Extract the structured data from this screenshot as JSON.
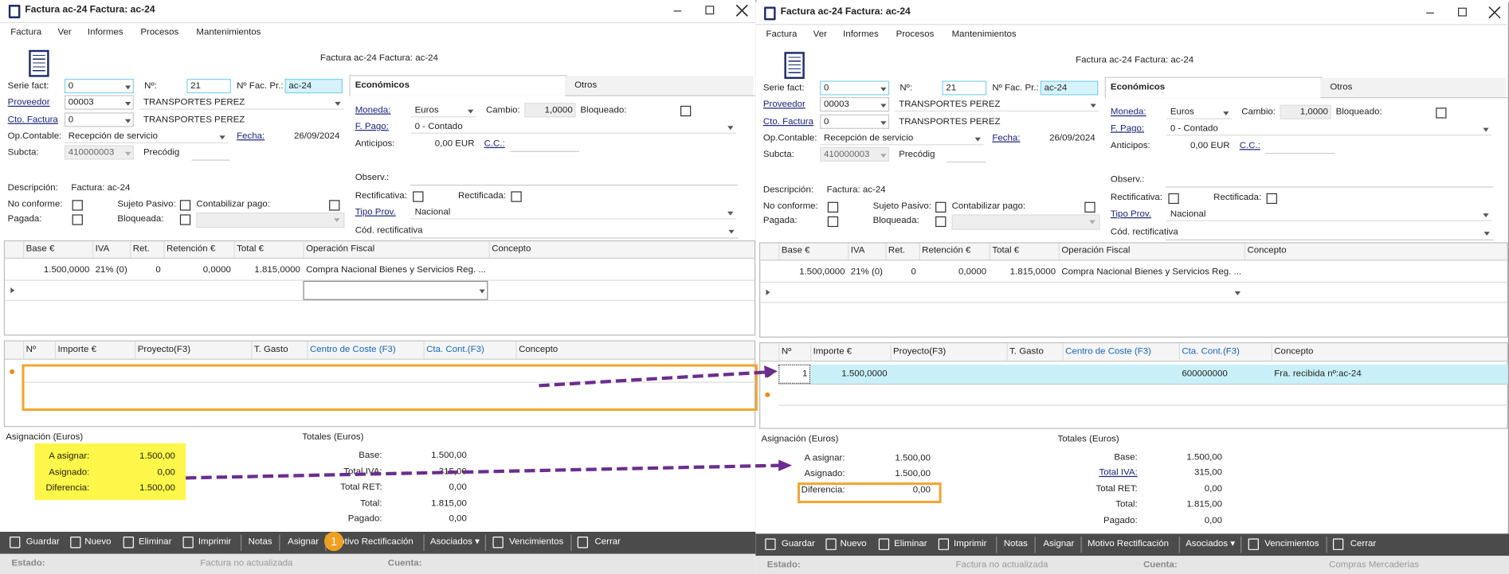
{
  "windows": [
    {
      "title": "Factura ac-24  Factura: ac-24",
      "menu": [
        "Factura",
        "Ver",
        "Informes",
        "Procesos",
        "Mantenimientos"
      ],
      "caption": "Factura ac-24  Factura: ac-24",
      "tabs": [
        "Económicos",
        "Otros"
      ],
      "labels": [
        "Serie fact:",
        "Nº:",
        "Nº Fac. Pr.:",
        "Proveedor",
        "Cto. Factura",
        "Op.Contable:",
        "Fecha:",
        "Subcta:",
        "Precódig",
        "Descripción:",
        "No conforme:",
        "Sujeto Pasivo:",
        "Contabilizar pago:",
        "Pagada:",
        "Bloqueada:",
        "Moneda:",
        "Cambio:",
        "Bloqueado:",
        "F. Pago:",
        "Anticipos:",
        "C.C.:",
        "Observ.:",
        "Rectificativa:",
        "Rectificada:",
        "Tipo Prov.",
        "Cód. rectificativa"
      ],
      "inputs": [
        "0",
        "21",
        "ac-24",
        "00003",
        "TRANSPORTES PEREZ",
        "0",
        "TRANSPORTES PEREZ",
        "Recepción de servicio",
        "26/09/2024",
        "410000003",
        "Factura: ac-24",
        "Euros",
        "1,0000",
        "0 - Contado",
        "0,00 EUR",
        "Nacional"
      ],
      "grid1": {
        "headers": [
          "Base €",
          "IVA",
          "Ret.",
          "Retención €",
          "Total €",
          "Operación Fiscal",
          "Concepto"
        ],
        "rows": [
          [
            "1.500,0000",
            "21% (0)",
            "0",
            "0,0000",
            "1.815,0000",
            "Compra Nacional Bienes y Servicios Reg. ...",
            null
          ]
        ]
      },
      "grid2": {
        "headers": [
          "Nº",
          "Importe €",
          "Proyecto(F3)",
          "T. Gasto",
          "Centro de Coste (F3)",
          "Cta. Cont.(F3)",
          "Concepto"
        ],
        "rows": []
      },
      "assignment": {
        "title": "Asignación (Euros)",
        "rows": [
          {
            "label": "A asignar:",
            "value": "1.500,00"
          },
          {
            "label": "Asignado:",
            "value": "0,00"
          },
          {
            "label": "Diferencia:",
            "value": "1.500,00"
          }
        ]
      },
      "totals": {
        "title": "Totales (Euros)",
        "rows": [
          {
            "label": "Base:",
            "value": "1.500,00"
          },
          {
            "label": "Total IVA:",
            "value": "315,00"
          },
          {
            "label": "Total RET:",
            "value": "0,00"
          },
          {
            "label": "Total:",
            "value": "1.815,00"
          },
          {
            "label": "Pagado:",
            "value": "0,00"
          }
        ]
      },
      "toolbar": [
        "Guardar",
        "Nuevo",
        "Eliminar",
        "Imprimir",
        "Notas",
        "Asignar",
        "Motivo Rectificación",
        "Asociados ▾",
        "Vencimientos",
        "Cerrar"
      ],
      "status": [
        {
          "label": "Estado:",
          "value": "Factura no actualizada"
        },
        {
          "label": "Cuenta:",
          "value": null
        }
      ]
    },
    {
      "title": "Factura ac-24  Factura: ac-24",
      "menu": [
        "Factura",
        "Ver",
        "Informes",
        "Procesos",
        "Mantenimientos"
      ],
      "caption": "Factura ac-24  Factura: ac-24",
      "tabs": [
        "Económicos",
        "Otros"
      ],
      "labels": [
        "Serie fact:",
        "Nº:",
        "Nº Fac. Pr.:",
        "Proveedor",
        "Cto. Factura",
        "Op.Contable:",
        "Fecha:",
        "Subcta:",
        "Precódig",
        "Descripción:",
        "No conforme:",
        "Sujeto Pasivo:",
        "Contabilizar pago:",
        "Pagada:",
        "Bloqueada:",
        "Moneda:",
        "Cambio:",
        "Bloqueado:",
        "F. Pago:",
        "Anticipos:",
        "C.C.:",
        "Observ.:",
        "Rectificativa:",
        "Rectificada:",
        "Tipo Prov.",
        "Cód. rectificativa"
      ],
      "inputs": [
        "0",
        "21",
        "ac-24",
        "00003",
        "TRANSPORTES PEREZ",
        "0",
        "TRANSPORTES PEREZ",
        "Recepción de servicio",
        "26/09/2024",
        "410000003",
        "Factura: ac-24",
        "Euros",
        "1,0000",
        "0 - Contado",
        "0,00 EUR",
        "Nacional"
      ],
      "grid1": {
        "headers": [
          "Base €",
          "IVA",
          "Ret.",
          "Retención €",
          "Total €",
          "Operación Fiscal",
          "Concepto"
        ],
        "rows": [
          [
            "1.500,0000",
            "21% (0)",
            "0",
            "0,0000",
            "1.815,0000",
            "Compra Nacional Bienes y Servicios Reg. ...",
            null
          ]
        ]
      },
      "grid2": {
        "headers": [
          "Nº",
          "Importe €",
          "Proyecto(F3)",
          "T. Gasto",
          "Centro de Coste (F3)",
          "Cta. Cont.(F3)",
          "Concepto"
        ],
        "rows": [
          [
            "1",
            "1.500,0000",
            null,
            null,
            null,
            "600000000",
            "Fra. recibida nº:ac-24"
          ]
        ]
      },
      "assignment": {
        "title": "Asignación (Euros)",
        "rows": [
          {
            "label": "A asignar:",
            "value": "1.500,00"
          },
          {
            "label": "Asignado:",
            "value": "1.500,00"
          },
          {
            "label": "Diferencia:",
            "value": "0,00"
          }
        ]
      },
      "totals": {
        "title": "Totales (Euros)",
        "rows": [
          {
            "label": "Base:",
            "value": "1.500,00"
          },
          {
            "label": "Total IVA:",
            "value": "315,00"
          },
          {
            "label": "Total RET:",
            "value": "0,00"
          },
          {
            "label": "Total:",
            "value": "1.815,00"
          },
          {
            "label": "Pagado:",
            "value": "0,00"
          }
        ]
      },
      "toolbar": [
        "Guardar",
        "Nuevo",
        "Eliminar",
        "Imprimir",
        "Notas",
        "Asignar",
        "Motivo Rectificación",
        "Asociados ▾",
        "Vencimientos",
        "Cerrar"
      ],
      "status": [
        {
          "label": "Estado:",
          "value": "Factura no actualizada"
        },
        {
          "label": "Cuenta:",
          "value": "Compras Mercaderias"
        }
      ]
    }
  ],
  "annotations": {
    "step_badge": "1"
  }
}
